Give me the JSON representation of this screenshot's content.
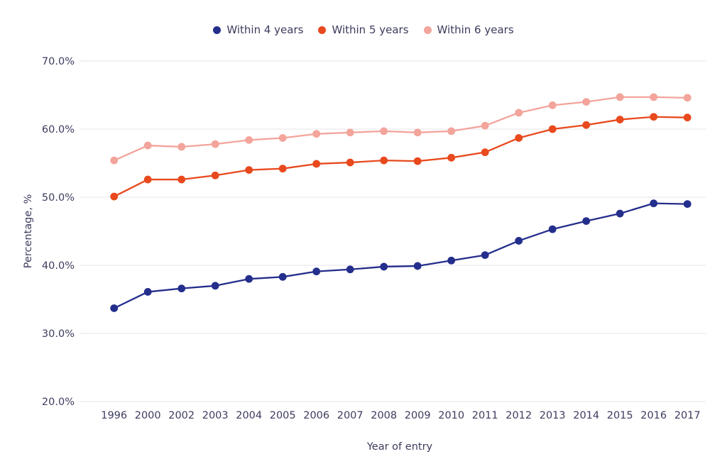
{
  "chart_data": {
    "type": "line",
    "title": "",
    "xlabel": "Year of entry",
    "ylabel": "Percentage, %",
    "ylim": [
      20,
      70
    ],
    "grid": "horizontal",
    "grid_color": "#e5e5e8",
    "legend_position": "top-center",
    "background": "#ffffff",
    "text_color": "#3c3c5e",
    "yticks": [
      {
        "value": 70,
        "label": "70.0%"
      },
      {
        "value": 60,
        "label": "60.0%"
      },
      {
        "value": 50,
        "label": "50.0%"
      },
      {
        "value": 40,
        "label": "40.0%"
      },
      {
        "value": 30,
        "label": "30.0%"
      },
      {
        "value": 20,
        "label": "20.0%"
      }
    ],
    "categories": [
      "1996",
      "2000",
      "2002",
      "2003",
      "2004",
      "2005",
      "2006",
      "2007",
      "2008",
      "2009",
      "2010",
      "2011",
      "2012",
      "2013",
      "2014",
      "2015",
      "2016",
      "2017"
    ],
    "series": [
      {
        "name": "Within 4 years",
        "color": "#242e8c",
        "values": [
          33.7,
          36.1,
          36.6,
          37.0,
          38.0,
          38.3,
          39.1,
          39.4,
          39.8,
          39.9,
          40.7,
          41.5,
          43.6,
          45.3,
          46.5,
          47.6,
          49.1,
          49.0
        ]
      },
      {
        "name": "Within 5 years",
        "color": "#e8491d",
        "values": [
          50.1,
          52.6,
          52.6,
          53.2,
          54.0,
          54.2,
          54.9,
          55.1,
          55.4,
          55.3,
          55.8,
          56.6,
          58.7,
          60.0,
          60.6,
          61.4,
          61.8,
          61.7
        ]
      },
      {
        "name": "Within 6 years",
        "color": "#f3a49b",
        "values": [
          55.4,
          57.6,
          57.4,
          57.8,
          58.4,
          58.7,
          59.3,
          59.5,
          59.7,
          59.5,
          59.7,
          60.5,
          62.4,
          63.5,
          64.0,
          64.7,
          64.7,
          64.6
        ]
      }
    ]
  }
}
